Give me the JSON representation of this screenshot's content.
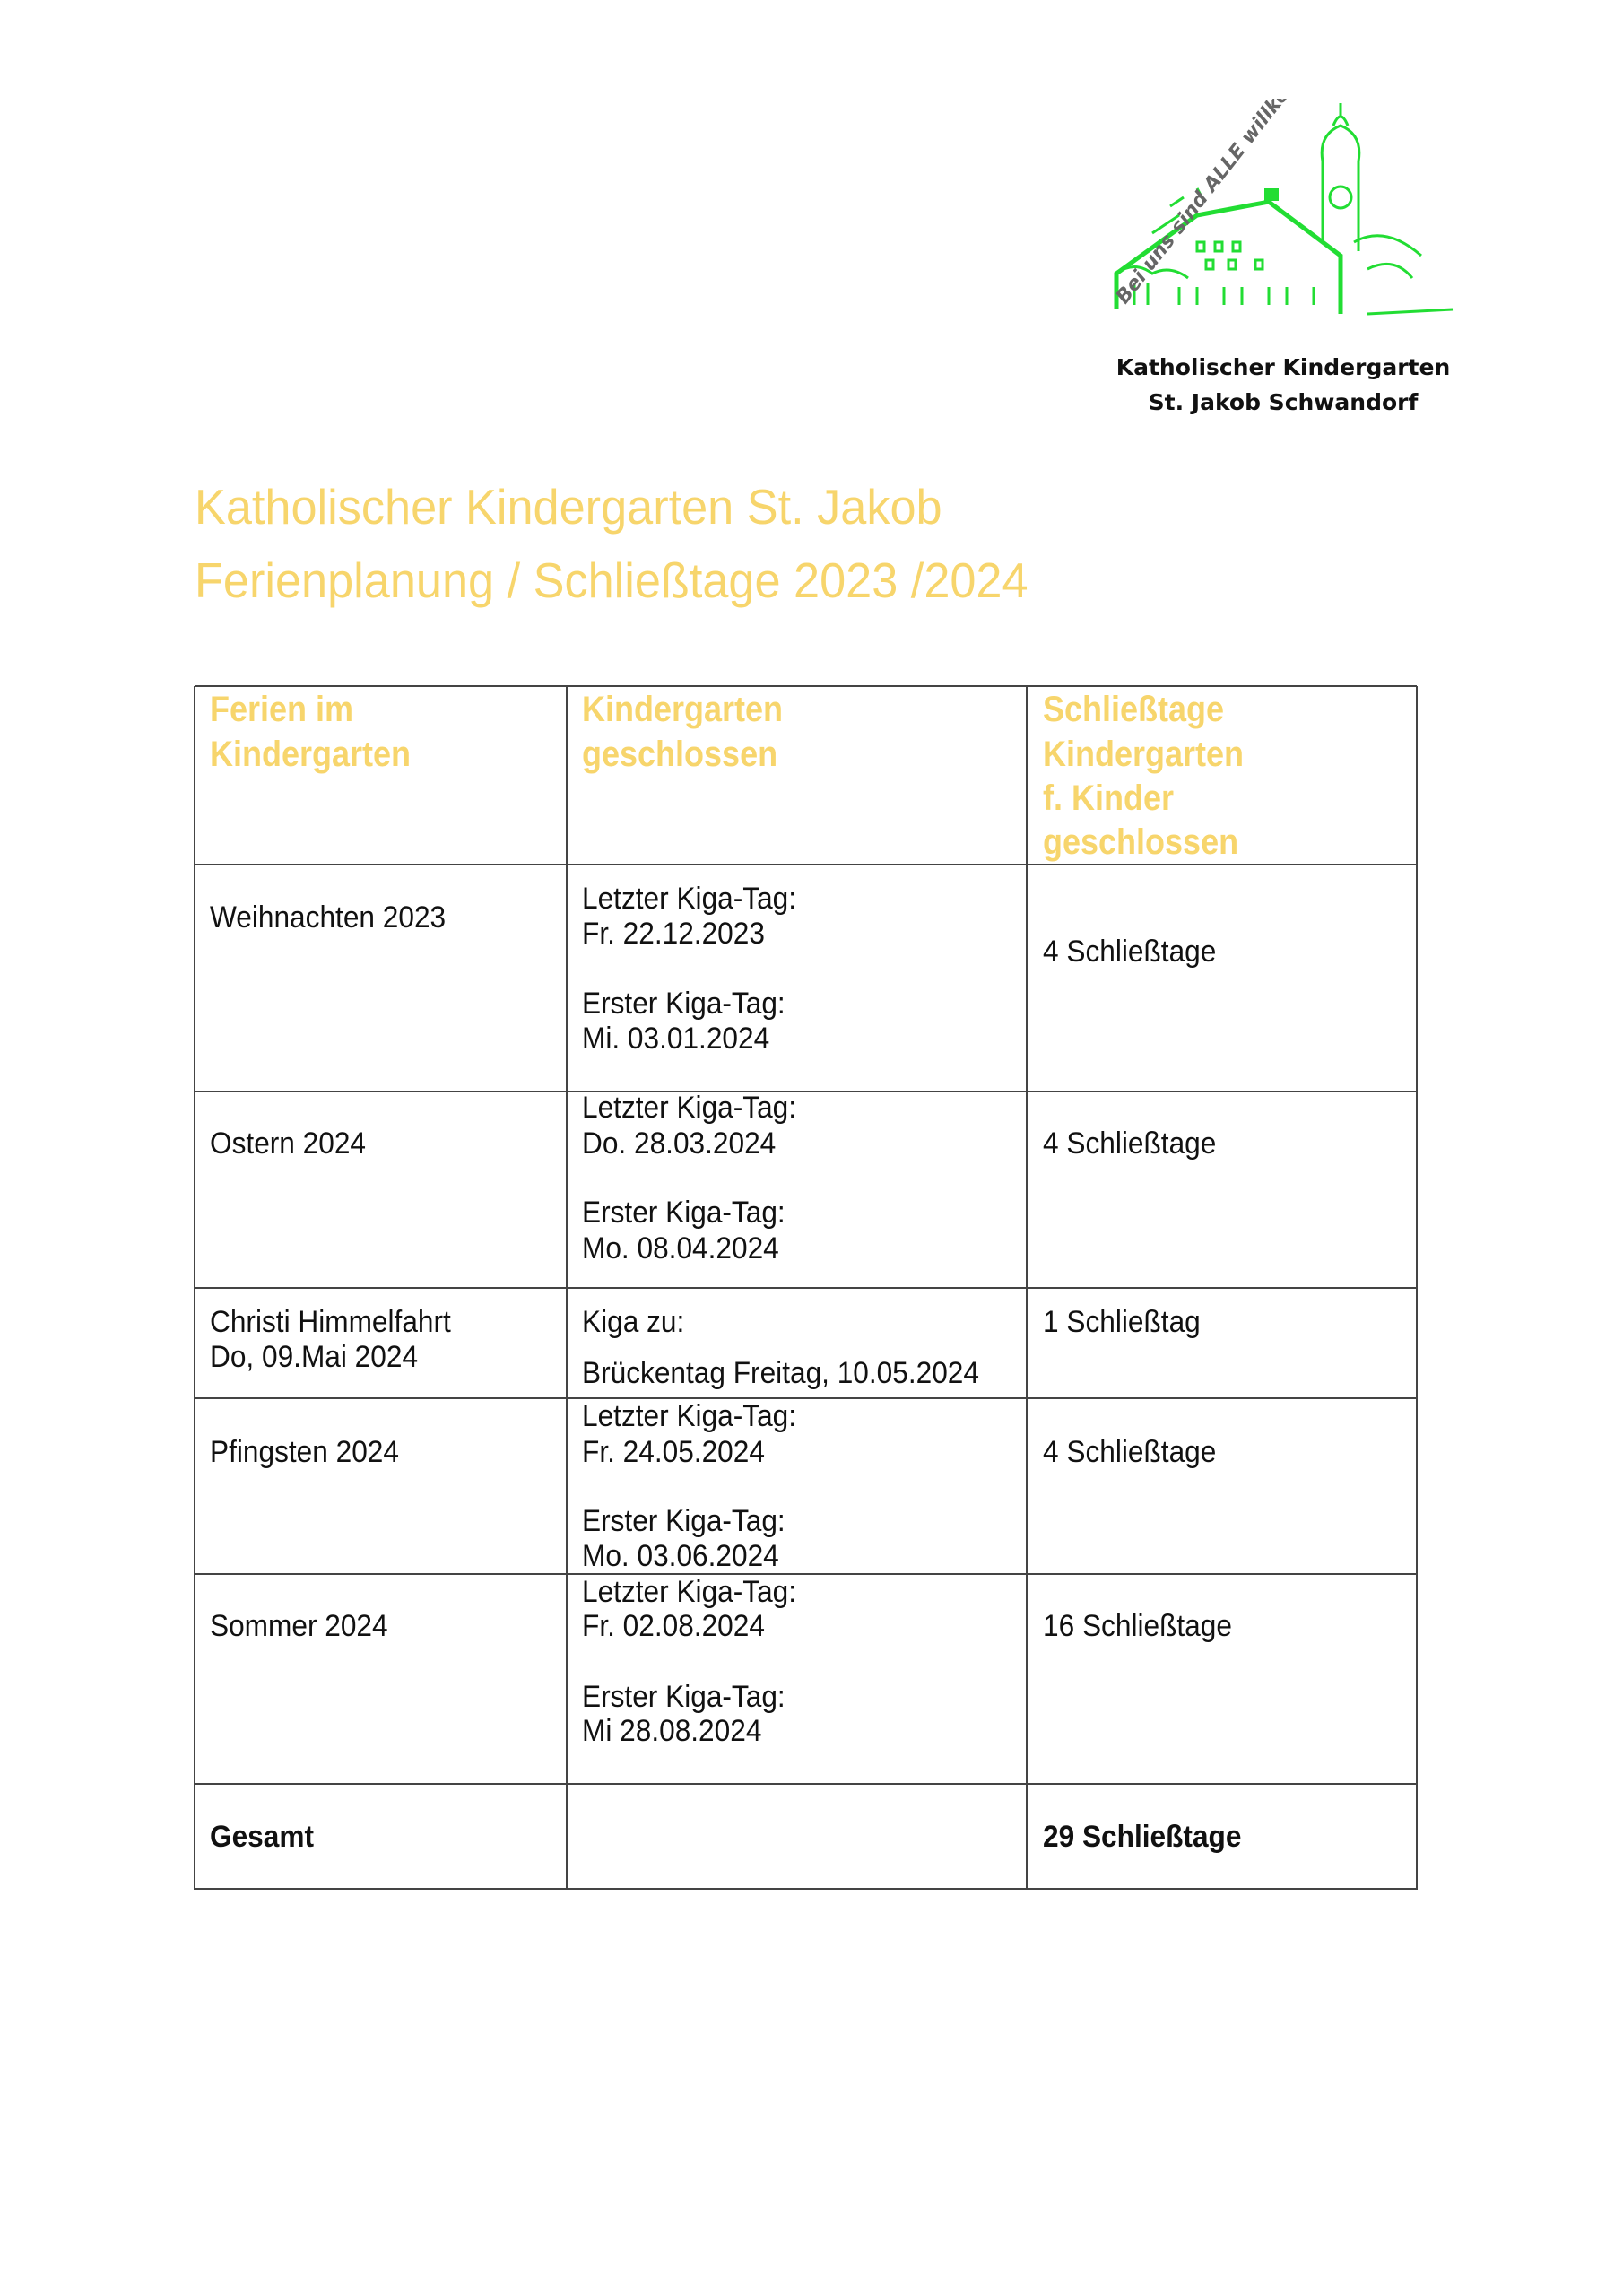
{
  "logo": {
    "motto": "Bei uns sind ALLE willkommen",
    "caption_line1": "Katholischer Kindergarten",
    "caption_line2": "St. Jakob Schwandorf",
    "color": "#22dd33"
  },
  "title": {
    "line1": "Katholischer Kindergarten St. Jakob",
    "line2": "Ferienplanung / Schließtage 2023 /2024",
    "color": "#f7d56c"
  },
  "table": {
    "headers": [
      [
        "Ferien im",
        "Kindergarten"
      ],
      [
        "Kindergarten",
        "geschlossen"
      ],
      [
        "Schließtage",
        "Kindergarten",
        "f. Kinder",
        "geschlossen"
      ]
    ],
    "rows": [
      {
        "ferien": [
          "Weihnachten 2023"
        ],
        "geschlossen": [
          "Letzter Kiga-Tag:",
          "Fr. 22.12.2023",
          "Erster Kiga-Tag:",
          "Mi. 03.01.2024"
        ],
        "schliesstage": "4 Schließtage"
      },
      {
        "ferien": [
          "Ostern 2024"
        ],
        "geschlossen": [
          "Letzter Kiga-Tag:",
          "Do. 28.03.2024",
          "Erster Kiga-Tag:",
          "Mo. 08.04.2024"
        ],
        "schliesstage": "4 Schließtage"
      },
      {
        "ferien": [
          "Christi Himmelfahrt",
          "Do, 09.Mai 2024"
        ],
        "geschlossen": [
          "Kiga zu:",
          "Brückentag Freitag, 10.05.2024"
        ],
        "schliesstage": "1 Schließtag"
      },
      {
        "ferien": [
          "Pfingsten 2024"
        ],
        "geschlossen": [
          "Letzter Kiga-Tag:",
          "Fr. 24.05.2024",
          "Erster Kiga-Tag:",
          "Mo. 03.06.2024"
        ],
        "schliesstage": "4 Schließtage"
      },
      {
        "ferien": [
          "Sommer 2024"
        ],
        "geschlossen": [
          "Letzter Kiga-Tag:",
          "Fr. 02.08.2024",
          "Erster Kiga-Tag:",
          "Mi 28.08.2024"
        ],
        "schliesstage": "16 Schließtage"
      }
    ],
    "total": {
      "label": "Gesamt",
      "value": "29 Schließtage"
    }
  }
}
